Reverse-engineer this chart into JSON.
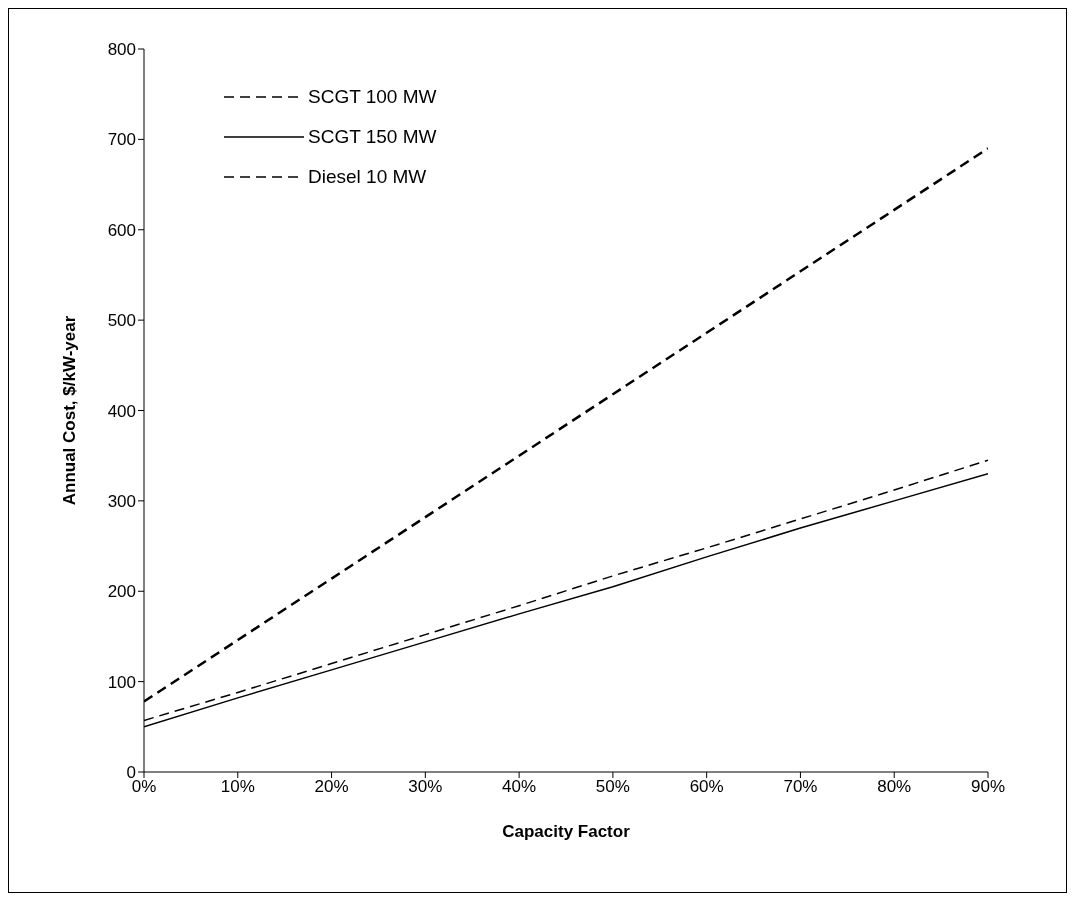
{
  "chart_data": {
    "type": "line",
    "xlabel": "Capacity Factor",
    "ylabel": "Annual Cost, $/kW-year",
    "x": [
      0,
      10,
      20,
      30,
      40,
      50,
      60,
      70,
      80,
      90
    ],
    "series": [
      {
        "name": "SCGT 100 MW",
        "color": "#000000",
        "line_style": "dashed",
        "values": [
          57,
          88,
          120,
          152,
          184,
          217,
          248,
          280,
          312,
          345
        ]
      },
      {
        "name": "SCGT 150 MW",
        "color": "#000000",
        "line_style": "solid",
        "values": [
          50,
          82,
          113,
          144,
          175,
          205,
          238,
          270,
          300,
          330
        ]
      },
      {
        "name": "Diesel 10 MW",
        "color": "#000000",
        "line_style": "dashed",
        "values": [
          78,
          146,
          214,
          282,
          350,
          418,
          486,
          554,
          622,
          690
        ]
      }
    ],
    "xlim": [
      0,
      90
    ],
    "xticks": [
      {
        "value": 0,
        "label": "0%"
      },
      {
        "value": 10,
        "label": "10%"
      },
      {
        "value": 20,
        "label": "20%"
      },
      {
        "value": 30,
        "label": "30%"
      },
      {
        "value": 40,
        "label": "40%"
      },
      {
        "value": 50,
        "label": "50%"
      },
      {
        "value": 60,
        "label": "60%"
      },
      {
        "value": 70,
        "label": "70%"
      },
      {
        "value": 80,
        "label": "80%"
      },
      {
        "value": 90,
        "label": "90%"
      }
    ],
    "ylim": [
      0,
      800
    ],
    "yticks": [
      0,
      100,
      200,
      300,
      400,
      500,
      600,
      700,
      800
    ],
    "grid": false,
    "legend": "top left",
    "marker": "none"
  }
}
